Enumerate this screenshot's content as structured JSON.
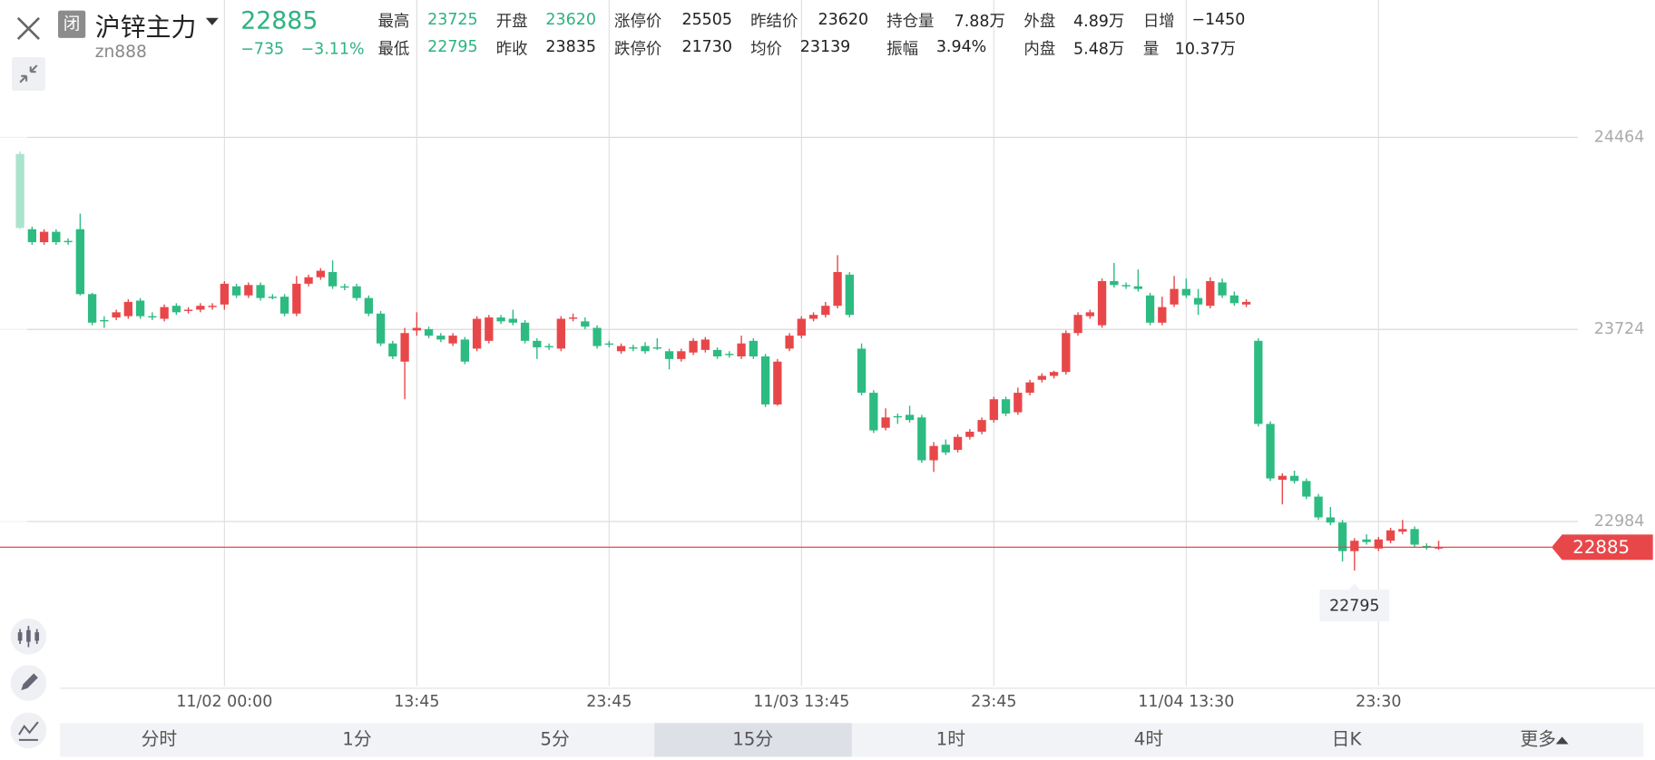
{
  "header": {
    "badge": "闭",
    "title": "沪锌主力",
    "code": "zn888",
    "price": "22885",
    "change": "−735",
    "change_pct": "−3.11%",
    "price_color": "#2db37f",
    "stats": [
      [
        {
          "label": "最高",
          "value": "23725",
          "color": "#2db37f"
        },
        {
          "label": "开盘",
          "value": "23620",
          "color": "#2db37f"
        },
        {
          "label": "涨停价",
          "value": "25505"
        },
        {
          "label": "昨结价",
          "value": "23620"
        },
        {
          "label": "持仓量",
          "value": "7.88万"
        },
        {
          "label": "外盘",
          "value": "4.89万"
        },
        {
          "label": "日增",
          "value": "−1450"
        }
      ],
      [
        {
          "label": "最低",
          "value": "22795",
          "color": "#2db37f"
        },
        {
          "label": "昨收",
          "value": "23835"
        },
        {
          "label": "跌停价",
          "value": "21730"
        },
        {
          "label": "均价",
          "value": "23139"
        },
        {
          "label": "振幅",
          "value": "3.94%"
        },
        {
          "label": "内盘",
          "value": "5.48万"
        },
        {
          "label": "量",
          "value": "10.37万"
        }
      ]
    ]
  },
  "chart_data": {
    "type": "candlestick",
    "up_color": "#e8474a",
    "down_color": "#2dbb82",
    "grid": true,
    "categories": [
      null,
      null,
      null,
      null,
      null,
      null,
      null,
      null,
      null,
      null,
      null,
      null,
      null,
      null,
      null,
      null,
      null,
      "11/02 00:00",
      null,
      null,
      null,
      null,
      null,
      null,
      null,
      null,
      null,
      null,
      null,
      null,
      null,
      null,
      null,
      "13:45",
      null,
      null,
      null,
      null,
      null,
      null,
      null,
      null,
      null,
      null,
      null,
      null,
      null,
      null,
      null,
      "23:45",
      null,
      null,
      null,
      null,
      null,
      null,
      null,
      null,
      null,
      null,
      null,
      null,
      null,
      null,
      null,
      "11/03 13:45",
      null,
      null,
      null,
      null,
      null,
      null,
      null,
      null,
      null,
      null,
      null,
      null,
      null,
      null,
      null,
      "23:45",
      null,
      null,
      null,
      null,
      null,
      null,
      null,
      null,
      null,
      null,
      null,
      null,
      null,
      null,
      null,
      "11/04 13:30",
      null,
      null,
      null,
      null,
      null,
      null,
      null,
      null,
      null,
      null,
      null,
      null,
      null,
      null,
      null,
      "23:30",
      null,
      null,
      null,
      null,
      null
    ],
    "open": [
      24400,
      24110,
      24060,
      24100,
      24065,
      24110,
      23860,
      23760,
      23770,
      23775,
      23835,
      23775,
      23765,
      23815,
      23795,
      23800,
      23810,
      23820,
      23890,
      23855,
      23895,
      23850,
      23850,
      23785,
      23900,
      23925,
      23945,
      23890,
      23890,
      23845,
      23785,
      23670,
      23600,
      23720,
      23725,
      23700,
      23670,
      23685,
      23650,
      23680,
      23770,
      23765,
      23750,
      23680,
      23660,
      23650,
      23765,
      23755,
      23730,
      23670,
      23640,
      23655,
      23660,
      23655,
      23640,
      23610,
      23635,
      23645,
      23645,
      23630,
      23620,
      23680,
      23620,
      23435,
      23650,
      23700,
      23765,
      23780,
      23815,
      23935,
      23650,
      23480,
      23345,
      23390,
      23395,
      23385,
      23220,
      23280,
      23260,
      23310,
      23330,
      23375,
      23455,
      23405,
      23480,
      23530,
      23545,
      23560,
      23710,
      23775,
      23740,
      23910,
      23895,
      23890,
      23855,
      23750,
      23820,
      23880,
      23845,
      23815,
      23905,
      23855,
      23820,
      23680,
      23360,
      23145,
      23160,
      23140,
      23080,
      23000,
      22980,
      22870,
      22915,
      22880,
      22910,
      22945,
      22955,
      22890,
      22880
    ],
    "high": [
      24410,
      24120,
      24110,
      24110,
      24075,
      24170,
      23865,
      23775,
      23800,
      23840,
      23845,
      23790,
      23820,
      23825,
      23810,
      23825,
      23825,
      23910,
      23900,
      23905,
      23905,
      23860,
      23860,
      23930,
      23935,
      23960,
      23990,
      23900,
      23900,
      23855,
      23795,
      23680,
      23730,
      23790,
      23735,
      23710,
      23710,
      23695,
      23775,
      23780,
      23780,
      23800,
      23760,
      23690,
      23670,
      23775,
      23785,
      23770,
      23740,
      23680,
      23670,
      23665,
      23675,
      23690,
      23650,
      23650,
      23690,
      23695,
      23655,
      23640,
      23700,
      23690,
      23630,
      23610,
      23710,
      23775,
      23790,
      23830,
      24010,
      23945,
      23670,
      23490,
      23420,
      23400,
      23430,
      23395,
      23290,
      23300,
      23320,
      23340,
      23385,
      23465,
      23465,
      23500,
      23530,
      23555,
      23565,
      23720,
      23790,
      23800,
      23920,
      23980,
      23905,
      23955,
      23865,
      23850,
      23930,
      23920,
      23880,
      23925,
      23920,
      23870,
      23840,
      23690,
      23370,
      23170,
      23180,
      23150,
      23090,
      23040,
      22990,
      22920,
      22935,
      22925,
      22960,
      22990,
      22965,
      22900,
      22910
    ],
    "low": [
      24110,
      24050,
      24050,
      24050,
      24050,
      23855,
      23740,
      23730,
      23760,
      23765,
      23765,
      23760,
      23755,
      23780,
      23785,
      23790,
      23800,
      23800,
      23845,
      23845,
      23835,
      23840,
      23775,
      23775,
      23890,
      23915,
      23880,
      23875,
      23835,
      23775,
      23660,
      23610,
      23455,
      23700,
      23690,
      23675,
      23660,
      23590,
      23640,
      23670,
      23745,
      23740,
      23670,
      23610,
      23645,
      23640,
      23755,
      23725,
      23650,
      23655,
      23630,
      23640,
      23630,
      23645,
      23570,
      23600,
      23625,
      23635,
      23610,
      23615,
      23610,
      23610,
      23425,
      23430,
      23640,
      23690,
      23755,
      23770,
      23805,
      23770,
      23470,
      23325,
      23335,
      23360,
      23365,
      23210,
      23175,
      23240,
      23250,
      23300,
      23320,
      23365,
      23390,
      23395,
      23470,
      23520,
      23535,
      23550,
      23700,
      23765,
      23730,
      23885,
      23880,
      23870,
      23740,
      23740,
      23810,
      23845,
      23780,
      23805,
      23845,
      23815,
      23810,
      23350,
      23140,
      23050,
      23130,
      23070,
      22990,
      22970,
      22830,
      22795,
      22895,
      22870,
      22900,
      22935,
      22885,
      22875,
      22875
    ],
    "close": [
      24115,
      24060,
      24100,
      24060,
      24060,
      23860,
      23750,
      23755,
      23790,
      23830,
      23775,
      23770,
      23810,
      23790,
      23800,
      23815,
      23815,
      23900,
      23855,
      23895,
      23845,
      23845,
      23785,
      23900,
      23925,
      23950,
      23890,
      23885,
      23845,
      23785,
      23670,
      23620,
      23710,
      23730,
      23700,
      23685,
      23700,
      23600,
      23765,
      23770,
      23755,
      23750,
      23680,
      23655,
      23655,
      23765,
      23770,
      23735,
      23660,
      23665,
      23660,
      23650,
      23640,
      23650,
      23610,
      23640,
      23680,
      23685,
      23620,
      23625,
      23670,
      23620,
      23435,
      23600,
      23700,
      23765,
      23780,
      23815,
      23945,
      23780,
      23480,
      23335,
      23385,
      23385,
      23375,
      23220,
      23275,
      23250,
      23310,
      23330,
      23375,
      23455,
      23400,
      23480,
      23520,
      23545,
      23560,
      23710,
      23780,
      23790,
      23910,
      23895,
      23890,
      23880,
      23750,
      23810,
      23880,
      23855,
      23820,
      23910,
      23855,
      23825,
      23830,
      23360,
      23150,
      23160,
      23140,
      23080,
      23000,
      22980,
      22870,
      22910,
      22905,
      22915,
      22950,
      22955,
      22895,
      22885,
      22885
    ],
    "ylim": [
      22350,
      24749
    ],
    "yticks": [
      22984,
      23724,
      24464
    ],
    "last_price": 22885,
    "last_price_color": "#e8474a",
    "low_marker": 22795
  },
  "tabs": {
    "items": [
      "分时",
      "1分",
      "5分",
      "15分",
      "1时",
      "4时",
      "日K",
      "更多"
    ],
    "selected": 3
  }
}
